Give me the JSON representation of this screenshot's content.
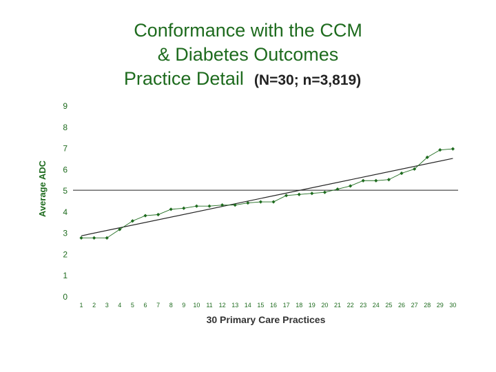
{
  "title": {
    "line1": "Conformance with the CCM",
    "line2": "& Diabetes Outcomes",
    "line3_main": "Practice Detail",
    "line3_suffix": "(N=30; n=3,819)"
  },
  "chart_data": {
    "type": "line",
    "title": "Conformance with the CCM & Diabetes Outcomes Practice Detail (N=30; n=3,819)",
    "xlabel": "30 Primary Care Practices",
    "ylabel": "Average ADC",
    "x": [
      1,
      2,
      3,
      4,
      5,
      6,
      7,
      8,
      9,
      10,
      11,
      12,
      13,
      14,
      15,
      16,
      17,
      18,
      19,
      20,
      21,
      22,
      23,
      24,
      25,
      26,
      27,
      28,
      29,
      30
    ],
    "series": [
      {
        "values": [
          2.75,
          2.75,
          2.75,
          3.15,
          3.55,
          3.8,
          3.85,
          4.1,
          4.15,
          4.25,
          4.25,
          4.3,
          4.3,
          4.4,
          4.45,
          4.45,
          4.75,
          4.8,
          4.85,
          4.9,
          5.05,
          5.2,
          5.45,
          5.45,
          5.5,
          5.8,
          6.0,
          6.55,
          6.9,
          6.95
        ]
      },
      {
        "type": "trendline",
        "start": [
          1,
          2.85
        ],
        "end": [
          30,
          6.5
        ]
      }
    ],
    "reference_line": 5,
    "ylim": [
      0,
      9
    ],
    "yticks": [
      0,
      1,
      2,
      3,
      4,
      5,
      6,
      7,
      8,
      9
    ],
    "colors": {
      "series": "#1e6b1e",
      "trend": "#222222",
      "text": "#1e6b1e",
      "axis_title": "#333333"
    },
    "grid": false,
    "legend": false
  }
}
